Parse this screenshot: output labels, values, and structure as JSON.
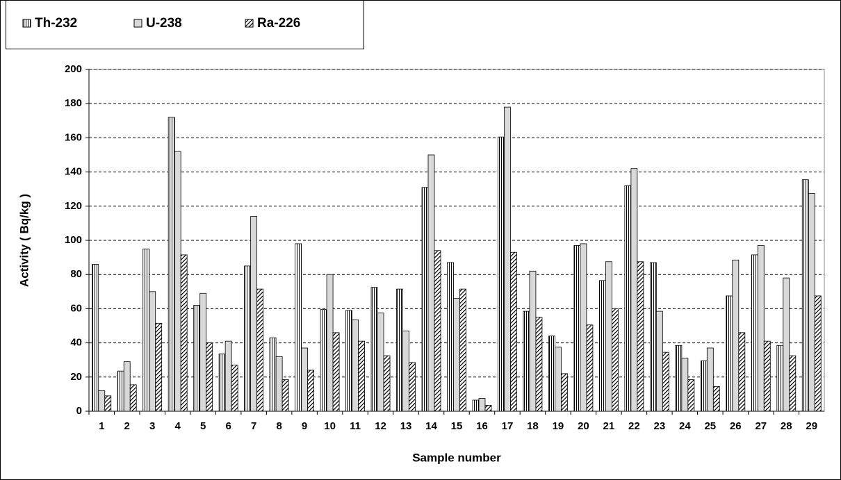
{
  "chart_data": {
    "type": "bar",
    "x_label": "Sample number",
    "y_label": "Activity ( Bq/kg )",
    "categories": [
      "1",
      "2",
      "3",
      "4",
      "5",
      "6",
      "7",
      "8",
      "9",
      "10",
      "11",
      "12",
      "13",
      "14",
      "15",
      "16",
      "17",
      "18",
      "19",
      "20",
      "21",
      "22",
      "23",
      "24",
      "25",
      "26",
      "27",
      "28",
      "29"
    ],
    "series": [
      {
        "name": "Th-232",
        "color": "#ffffff",
        "pattern": "vertical",
        "values": [
          86,
          23.5,
          95,
          172,
          62,
          33.5,
          85,
          43,
          98,
          59.5,
          59,
          72.5,
          71.5,
          131,
          87,
          6.5,
          160.5,
          58.5,
          44,
          97,
          76.5,
          132,
          87,
          38.5,
          29.5,
          67.5,
          91.5,
          38.5,
          135.5
        ]
      },
      {
        "name": "U-238",
        "color": "#d9d9d9",
        "pattern": "solid",
        "values": [
          12,
          29,
          70,
          152,
          69,
          41,
          114,
          32,
          37,
          80,
          53.5,
          57.5,
          47,
          150,
          66,
          7.5,
          178,
          82,
          37.5,
          98,
          87.5,
          142,
          58.5,
          31,
          37,
          88.5,
          97,
          78,
          127.5
        ]
      },
      {
        "name": "Ra-226",
        "color": "#ffffff",
        "pattern": "diagonal",
        "values": [
          9,
          15.5,
          51.5,
          91.5,
          40,
          27,
          71.5,
          18.5,
          24,
          46,
          41,
          32.5,
          28.5,
          94,
          71.5,
          3.5,
          93,
          55,
          22,
          50.5,
          60,
          87.5,
          34.5,
          18.5,
          14.5,
          46,
          41,
          32.5,
          67.5
        ]
      }
    ],
    "ylim": [
      0,
      200
    ],
    "yticks": [
      0,
      20,
      40,
      60,
      80,
      100,
      120,
      140,
      160,
      180,
      200
    ],
    "grid": true,
    "legend": "top-left"
  }
}
